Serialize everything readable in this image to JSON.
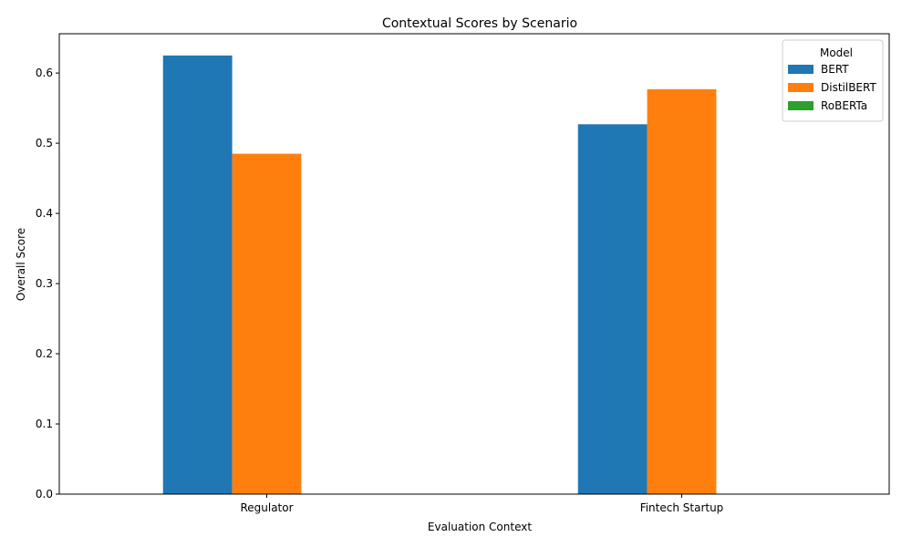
{
  "chart_data": {
    "type": "bar",
    "title": "Contextual Scores by Scenario",
    "xlabel": "Evaluation Context",
    "ylabel": "Overall Score",
    "categories": [
      "Regulator",
      "Fintech Startup"
    ],
    "series": [
      {
        "name": "BERT",
        "color": "#1f77b4",
        "values": [
          0.625,
          0.527
        ]
      },
      {
        "name": "DistilBERT",
        "color": "#ff7f0e",
        "values": [
          0.485,
          0.577
        ]
      },
      {
        "name": "RoBERTa",
        "color": "#2ca02c",
        "values": [
          0.0,
          0.0
        ]
      }
    ],
    "ylim": [
      0,
      0.656
    ],
    "yticks": [
      "0.0",
      "0.1",
      "0.2",
      "0.3",
      "0.4",
      "0.5",
      "0.6"
    ],
    "grid": false,
    "legend": {
      "title": "Model",
      "position": "top-right"
    }
  }
}
